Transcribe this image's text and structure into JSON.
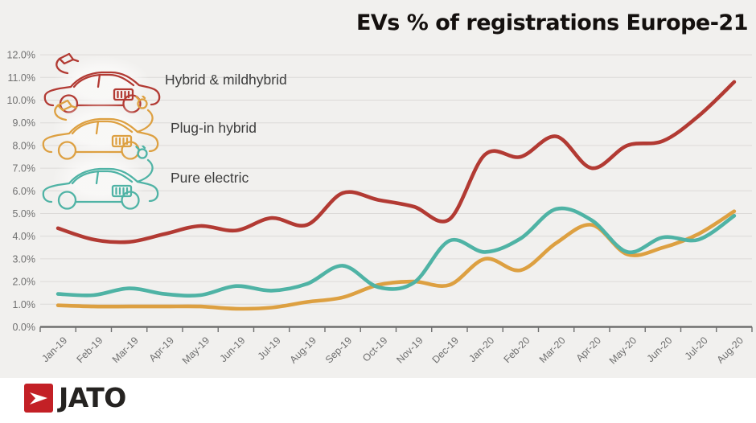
{
  "title": "EVs % of registrations Europe-21",
  "legend": [
    {
      "label": "Hybrid & mildhybrid",
      "color": "#b23a33",
      "icon": "hybrid-car-icon",
      "accessories": [
        "fuel-nozzle"
      ]
    },
    {
      "label": "Plug-in hybrid",
      "color": "#dda041",
      "icon": "plugin-hybrid-car-icon",
      "accessories": [
        "fuel-nozzle",
        "plug"
      ]
    },
    {
      "label": "Pure electric",
      "color": "#4fb3a5",
      "icon": "electric-car-icon",
      "accessories": [
        "plug"
      ]
    }
  ],
  "brand": {
    "name": "JATO",
    "logo_color": "#c32026",
    "text_color": "#252321",
    "arrow_icon_color": "#ffffff"
  },
  "colors": {
    "background": "#f1f0ee",
    "footer_background": "#ffffff",
    "grid": "#dcdad8",
    "axis": "#6f6f6f",
    "tick_text": "#707070",
    "title_text": "#14100e",
    "legend_text": "#3d3d3d"
  },
  "chart_data": {
    "type": "line",
    "title": "EVs % of registrations Europe-21",
    "xlabel": "",
    "ylabel": "",
    "grid": true,
    "legend_position": "top-left",
    "ylim": [
      0,
      12
    ],
    "ytick_step": 1.0,
    "y_tick_labels": [
      "0.0%",
      "1.0%",
      "2.0%",
      "3.0%",
      "4.0%",
      "5.0%",
      "6.0%",
      "7.0%",
      "8.0%",
      "9.0%",
      "10.0%",
      "11.0%",
      "12.0%"
    ],
    "categories": [
      "Jan-19",
      "Feb-19",
      "Mar-19",
      "Apr-19",
      "May-19",
      "Jun-19",
      "Jul-19",
      "Aug-19",
      "Sep-19",
      "Oct-19",
      "Nov-19",
      "Dec-19",
      "Jan-20",
      "Feb-20",
      "Mar-20",
      "Apr-20",
      "May-20",
      "Jun-20",
      "Jul-20",
      "Aug-20"
    ],
    "series": [
      {
        "name": "Hybrid & mildhybrid",
        "color": "#b23a33",
        "values": [
          4.35,
          3.85,
          3.75,
          4.1,
          4.45,
          4.25,
          4.8,
          4.5,
          5.9,
          5.6,
          5.3,
          4.75,
          7.6,
          7.5,
          8.4,
          7.0,
          8.0,
          8.2,
          9.3,
          10.8
        ]
      },
      {
        "name": "Plug-in hybrid",
        "color": "#dda041",
        "values": [
          0.95,
          0.9,
          0.9,
          0.9,
          0.9,
          0.8,
          0.85,
          1.1,
          1.3,
          1.85,
          2.0,
          1.85,
          3.0,
          2.5,
          3.7,
          4.5,
          3.2,
          3.5,
          4.1,
          5.1
        ]
      },
      {
        "name": "Pure electric",
        "color": "#4fb3a5",
        "values": [
          1.45,
          1.4,
          1.7,
          1.45,
          1.4,
          1.8,
          1.6,
          1.9,
          2.7,
          1.75,
          1.95,
          3.8,
          3.3,
          3.9,
          5.2,
          4.7,
          3.3,
          3.95,
          3.85,
          4.9
        ]
      }
    ]
  }
}
